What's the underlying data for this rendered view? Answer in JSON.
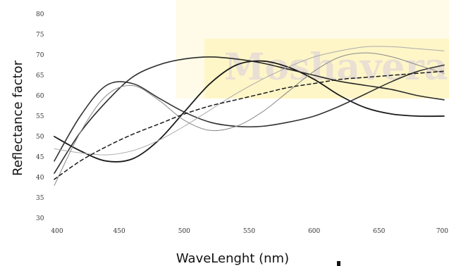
{
  "chart_data": {
    "type": "line",
    "title": "",
    "xlabel": "WaveLenght (nm)",
    "ylabel": "Reflectance factor",
    "xlim": [
      400,
      700
    ],
    "ylim": [
      30,
      80
    ],
    "xticks": [
      400,
      450,
      500,
      550,
      600,
      650,
      700
    ],
    "yticks": [
      30,
      35,
      40,
      45,
      50,
      55,
      60,
      65,
      70,
      75,
      80
    ],
    "grid": false,
    "legend": "none",
    "watermark": "Moshaveran",
    "series": [
      {
        "color": "#1a1a1a",
        "style": "solid",
        "width": 1.8,
        "x": [
          400,
          420,
          440,
          460,
          480,
          500,
          520,
          540,
          560,
          580,
          600,
          620,
          640,
          660,
          680,
          700
        ],
        "y": [
          50,
          46.5,
          44,
          44.5,
          49,
          56,
          63,
          67.5,
          68.5,
          67,
          64,
          60,
          57,
          55.5,
          55,
          55
        ]
      },
      {
        "color": "#2a2a2a",
        "style": "solid",
        "width": 1.6,
        "x": [
          400,
          420,
          440,
          460,
          480,
          500,
          520,
          540,
          560,
          580,
          600,
          620,
          640,
          660,
          680,
          700
        ],
        "y": [
          41,
          51,
          58.5,
          64.5,
          67.5,
          69,
          69.5,
          69,
          68,
          66.5,
          65,
          63.5,
          62.5,
          61.5,
          60,
          59
        ]
      },
      {
        "color": "#333333",
        "style": "solid",
        "width": 1.6,
        "x": [
          400,
          420,
          440,
          460,
          480,
          500,
          520,
          540,
          560,
          580,
          600,
          620,
          640,
          660,
          680,
          700
        ],
        "y": [
          44,
          55,
          62.5,
          63,
          59.5,
          56,
          53.5,
          52.5,
          52.5,
          53.5,
          55,
          57.5,
          60.5,
          63.5,
          66,
          67.5
        ]
      },
      {
        "color": "#888888",
        "style": "solid",
        "width": 1.0,
        "x": [
          400,
          420,
          440,
          460,
          480,
          500,
          520,
          540,
          560,
          580,
          600,
          620,
          640,
          660,
          680,
          700
        ],
        "y": [
          38,
          51,
          60,
          62.5,
          59,
          54,
          51.5,
          52.5,
          56,
          61,
          66,
          69.5,
          70.5,
          69.5,
          67.5,
          65.5
        ]
      },
      {
        "color": "#aaaaaa",
        "style": "solid",
        "width": 1.0,
        "x": [
          400,
          420,
          440,
          460,
          480,
          500,
          520,
          540,
          560,
          580,
          600,
          620,
          640,
          660,
          680,
          700
        ],
        "y": [
          47,
          46,
          45.5,
          46.5,
          49,
          52.5,
          56.5,
          60.5,
          64,
          67,
          69.5,
          71,
          72,
          72,
          71.5,
          71
        ]
      },
      {
        "color": "#1a1a1a",
        "style": "dashed",
        "width": 1.5,
        "x": [
          400,
          420,
          440,
          460,
          480,
          500,
          520,
          540,
          560,
          580,
          600,
          620,
          640,
          660,
          680,
          700
        ],
        "y": [
          39.5,
          44,
          47.5,
          50.5,
          53,
          55.5,
          57.5,
          59,
          60.5,
          62,
          63,
          64,
          64.5,
          65,
          65.5,
          66
        ]
      }
    ]
  }
}
